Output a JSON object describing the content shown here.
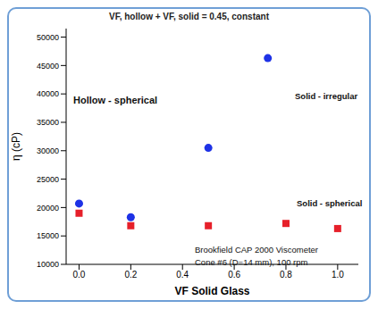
{
  "chart_data": {
    "type": "scatter",
    "title": "VF, hollow + VF, solid = 0.45, constant",
    "x_label": "VF Solid Glass",
    "y_label": "η (cP)",
    "xlim": [
      -0.05,
      1.08
    ],
    "xticks": [
      {
        "value": 0,
        "label": "0.0"
      },
      {
        "value": 0.2,
        "label": "0.2"
      },
      {
        "value": 0.4,
        "label": "0.4"
      },
      {
        "value": 0.6,
        "label": "0.6"
      },
      {
        "value": 0.8,
        "label": "0.8"
      },
      {
        "value": 1,
        "label": "1.0"
      }
    ],
    "ylim": [
      10000,
      51500
    ],
    "yticks": [
      10000,
      15000,
      20000,
      25000,
      30000,
      35000,
      40000,
      45000,
      50000
    ],
    "grid": false,
    "series": [
      {
        "color": "#1e32e6",
        "marker": "circle",
        "x": [
          0,
          0.2,
          0.5,
          0.73
        ],
        "values": [
          20700,
          18300,
          30500,
          46300
        ]
      },
      {
        "color": "#e6202a",
        "marker": "square",
        "x": [
          0,
          0.2,
          0.5,
          0.8,
          1
        ],
        "values": [
          19000,
          16800,
          16800,
          17200,
          16300
        ]
      }
    ],
    "annotations": [
      "Hollow - spherical",
      "Solid - irregular",
      "Solid - spherical",
      "Brookfield CAP 2000 Viscometer",
      "Cone #6 (D=14 mm), 100 rpm"
    ]
  }
}
